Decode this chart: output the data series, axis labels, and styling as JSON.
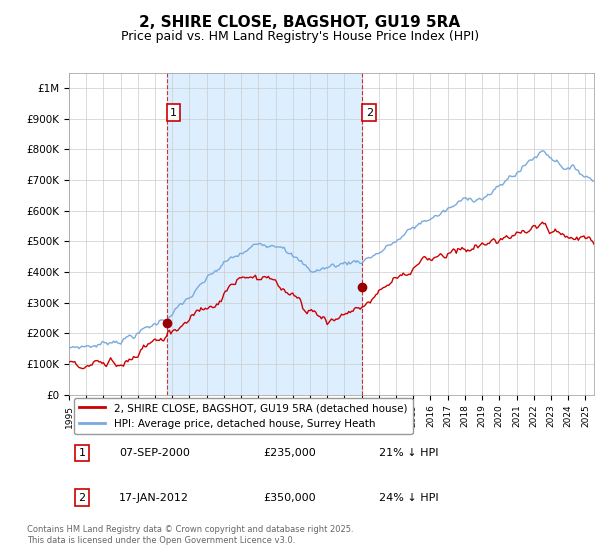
{
  "title": "2, SHIRE CLOSE, BAGSHOT, GU19 5RA",
  "subtitle": "Price paid vs. HM Land Registry's House Price Index (HPI)",
  "title_fontsize": 11,
  "subtitle_fontsize": 9,
  "background_color": "#ffffff",
  "plot_bg_color": "#ffffff",
  "shade_color": "#ddeeff",
  "grid_color": "#cccccc",
  "hpi_color": "#7aaadd",
  "sale_color": "#cc0000",
  "vline_color": "#cc0000",
  "ylim": [
    0,
    1050000
  ],
  "yticks": [
    0,
    100000,
    200000,
    300000,
    400000,
    500000,
    600000,
    700000,
    800000,
    900000,
    1000000
  ],
  "ytick_labels": [
    "£0",
    "£100K",
    "£200K",
    "£300K",
    "£400K",
    "£500K",
    "£600K",
    "£700K",
    "£800K",
    "£900K",
    "£1M"
  ],
  "sale_dates": [
    2000.68,
    2012.04
  ],
  "sale_prices": [
    235000,
    350000
  ],
  "sale_labels": [
    "1",
    "2"
  ],
  "legend_entries": [
    "2, SHIRE CLOSE, BAGSHOT, GU19 5RA (detached house)",
    "HPI: Average price, detached house, Surrey Heath"
  ],
  "annotation_rows": [
    {
      "label": "1",
      "date": "07-SEP-2000",
      "price": "£235,000",
      "hpi": "21% ↓ HPI"
    },
    {
      "label": "2",
      "date": "17-JAN-2012",
      "price": "£350,000",
      "hpi": "24% ↓ HPI"
    }
  ],
  "footer": "Contains HM Land Registry data © Crown copyright and database right 2025.\nThis data is licensed under the Open Government Licence v3.0.",
  "xmin": 1995.0,
  "xmax": 2025.5
}
